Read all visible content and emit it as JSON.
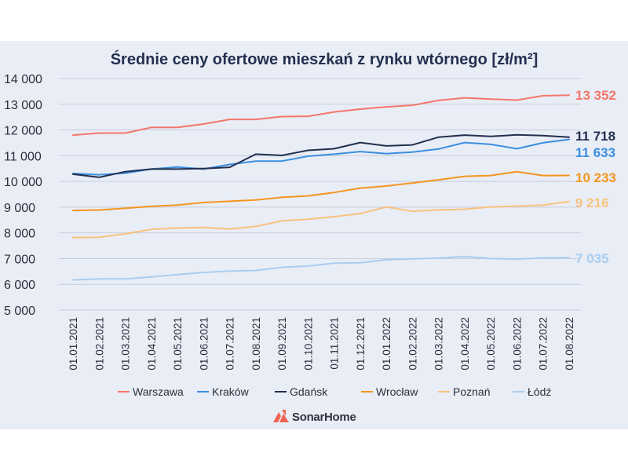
{
  "chart_data": {
    "type": "line",
    "title": "Średnie ceny ofertowe mieszkań z rynku wtórnego [zł/m²]",
    "xlabel": "",
    "ylabel": "",
    "ylim": [
      5000,
      14000
    ],
    "yticks": [
      5000,
      6000,
      7000,
      8000,
      9000,
      10000,
      11000,
      12000,
      13000,
      14000
    ],
    "ytick_labels": [
      "5 000",
      "6 000",
      "7 000",
      "8 000",
      "9 000",
      "10 000",
      "11 000",
      "12 000",
      "13 000",
      "14 000"
    ],
    "grid": true,
    "legend_position": "bottom",
    "categories": [
      "01.01.2021",
      "01.02.2021",
      "01.03.2021",
      "01.04.2021",
      "01.05.2021",
      "01.06.2021",
      "01.07.2021",
      "01.08.2021",
      "01.09.2021",
      "01.10.2021",
      "01.11.2021",
      "01.12.2021",
      "01.01.2022",
      "01.02.2022",
      "01.03.2022",
      "01.04.2022",
      "01.05.2022",
      "01.06.2022",
      "01.07.2022",
      "01.08.2022"
    ],
    "series": [
      {
        "name": "Warszawa",
        "color": "#f4766b",
        "end_label": "13 352",
        "values": [
          11800,
          11880,
          11880,
          12100,
          12100,
          12230,
          12410,
          12410,
          12520,
          12530,
          12700,
          12810,
          12900,
          12960,
          13150,
          13250,
          13200,
          13160,
          13330,
          13352
        ]
      },
      {
        "name": "Kraków",
        "color": "#3c8fe0",
        "end_label": "11 633",
        "values": [
          10310,
          10260,
          10320,
          10480,
          10560,
          10480,
          10660,
          10790,
          10790,
          10980,
          11060,
          11160,
          11080,
          11140,
          11260,
          11510,
          11440,
          11270,
          11500,
          11633
        ]
      },
      {
        "name": "Gdańsk",
        "color": "#22304e",
        "end_label": "11 718",
        "values": [
          10280,
          10160,
          10380,
          10480,
          10480,
          10500,
          10550,
          11060,
          11010,
          11210,
          11270,
          11510,
          11380,
          11420,
          11720,
          11800,
          11750,
          11810,
          11780,
          11718
        ]
      },
      {
        "name": "Wrocław",
        "color": "#f5951f",
        "end_label": "10 233",
        "values": [
          8870,
          8890,
          8960,
          9030,
          9080,
          9180,
          9230,
          9280,
          9380,
          9440,
          9570,
          9740,
          9820,
          9940,
          10060,
          10200,
          10230,
          10380,
          10230,
          10233
        ]
      },
      {
        "name": "Poznań",
        "color": "#f8c27e",
        "end_label": "9 216",
        "values": [
          7820,
          7830,
          7960,
          8140,
          8190,
          8210,
          8150,
          8250,
          8470,
          8530,
          8630,
          8750,
          9010,
          8840,
          8890,
          8920,
          9010,
          9040,
          9080,
          9216
        ]
      },
      {
        "name": "Łódź",
        "color": "#a9cdf0",
        "end_label": "7 035",
        "values": [
          6170,
          6210,
          6210,
          6290,
          6380,
          6460,
          6520,
          6540,
          6660,
          6710,
          6820,
          6840,
          6960,
          6990,
          7020,
          7080,
          7000,
          6980,
          7030,
          7035
        ]
      }
    ]
  },
  "brand": {
    "name": "SonarHome",
    "color": "#f06552"
  }
}
